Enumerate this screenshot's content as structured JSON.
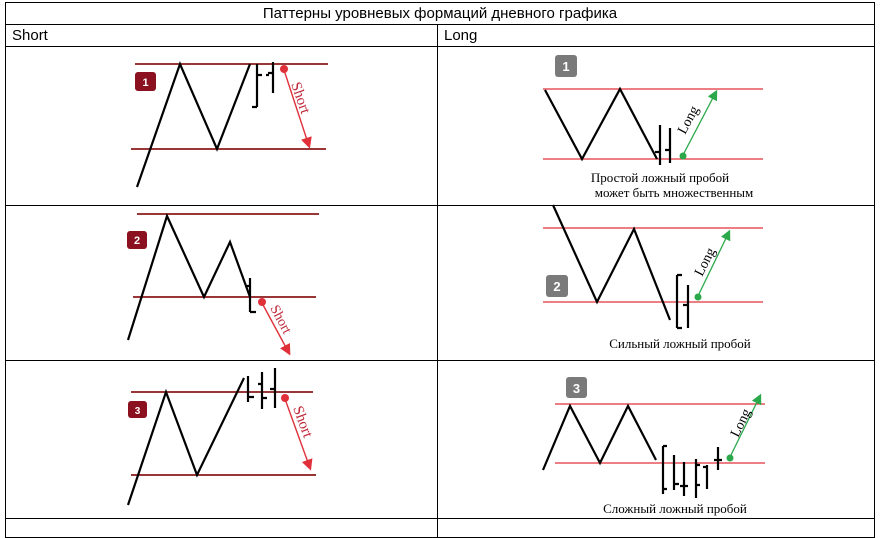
{
  "title": "Паттерны уровневых формаций дневного графика",
  "columns": {
    "short": "Short",
    "long": "Long"
  },
  "colors": {
    "short_line": "#8b1a1a",
    "short_badge": "#8b1020",
    "short_arrow": "#e0303a",
    "long_line": "#e0303a",
    "long_badge": "#7a7a7a",
    "long_arrow": "#2aa84a"
  },
  "short_patterns": [
    {
      "badge": "1",
      "arrow_label": "Short"
    },
    {
      "badge": "2",
      "arrow_label": "Short"
    },
    {
      "badge": "3",
      "arrow_label": "Short"
    }
  ],
  "long_patterns": [
    {
      "badge": "1",
      "arrow_label": "Long",
      "caption_line1": "Простой ложный пробой",
      "caption_line2": "может быть множественным"
    },
    {
      "badge": "2",
      "arrow_label": "Long",
      "caption_line1": "Сильный ложный пробой"
    },
    {
      "badge": "3",
      "arrow_label": "Long",
      "caption_line1": "Сложный ложный пробой"
    }
  ]
}
